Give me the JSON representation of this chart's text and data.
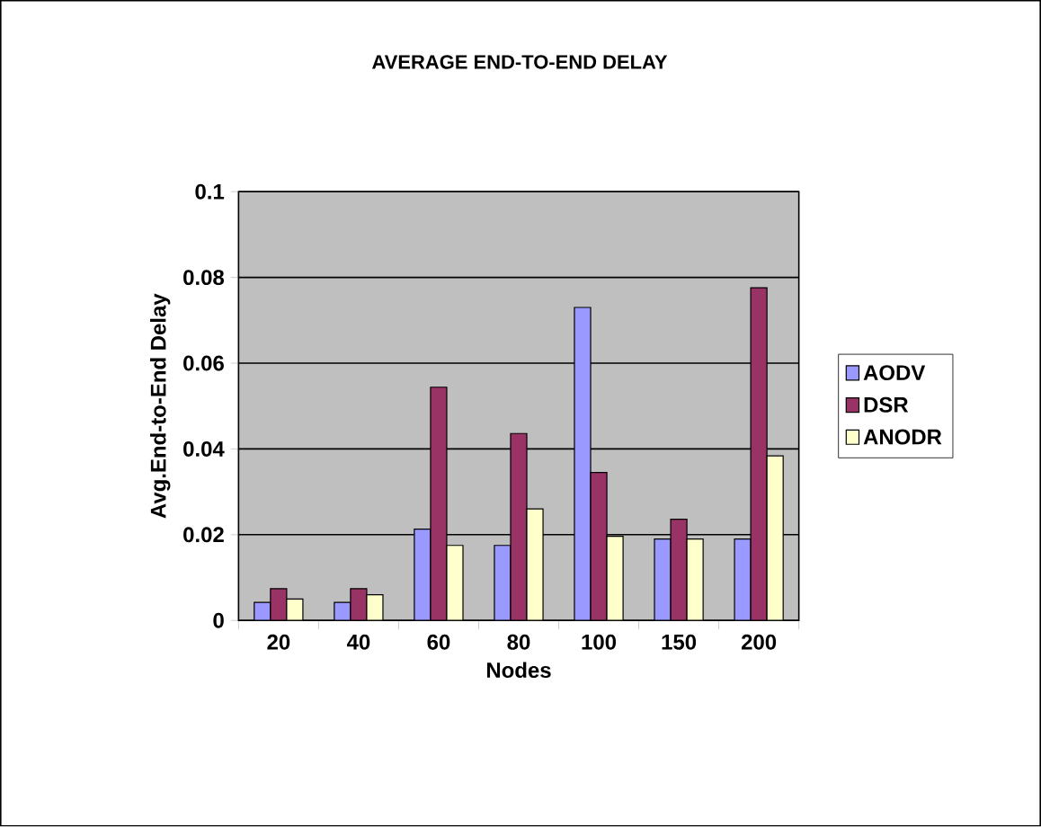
{
  "chart_data": {
    "type": "bar",
    "title": "AVERAGE END-TO-END DELAY",
    "xlabel": "Nodes",
    "ylabel": "Avg.End-to-End Delay",
    "categories": [
      "20",
      "40",
      "60",
      "80",
      "100",
      "150",
      "200"
    ],
    "series": [
      {
        "name": "AODV",
        "color": "#9999ff",
        "values": [
          0.0042,
          0.0042,
          0.0213,
          0.0175,
          0.073,
          0.019,
          0.019
        ]
      },
      {
        "name": "DSR",
        "color": "#993366",
        "values": [
          0.0074,
          0.0074,
          0.0544,
          0.0436,
          0.0345,
          0.0236,
          0.0776
        ]
      },
      {
        "name": "ANODR",
        "color": "#ffffcc",
        "values": [
          0.005,
          0.006,
          0.0175,
          0.026,
          0.0196,
          0.019,
          0.0384
        ]
      }
    ],
    "ylim": [
      0,
      0.1
    ],
    "yticks": [
      0,
      0.02,
      0.04,
      0.06,
      0.08,
      0.1
    ],
    "grid": "y",
    "legend": "right"
  }
}
